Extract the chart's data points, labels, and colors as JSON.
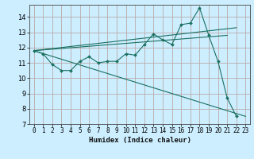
{
  "title": "",
  "xlabel": "Humidex (Indice chaleur)",
  "bg_color": "#cceeff",
  "grid_color": "#bbaaaa",
  "line_color": "#1a7060",
  "xlim": [
    -0.5,
    23.5
  ],
  "ylim": [
    7,
    14.8
  ],
  "xticks": [
    0,
    1,
    2,
    3,
    4,
    5,
    6,
    7,
    8,
    9,
    10,
    11,
    12,
    13,
    14,
    15,
    16,
    17,
    18,
    19,
    20,
    21,
    22,
    23
  ],
  "yticks": [
    7,
    8,
    9,
    10,
    11,
    12,
    13,
    14
  ],
  "series1_x": [
    0,
    1,
    2,
    3,
    4,
    5,
    6,
    7,
    8,
    9,
    10,
    11,
    12,
    13,
    14,
    15,
    16,
    17,
    18,
    19,
    20,
    21,
    22
  ],
  "series1_y": [
    11.8,
    11.6,
    10.9,
    10.5,
    10.5,
    11.1,
    11.4,
    11.0,
    11.1,
    11.1,
    11.6,
    11.5,
    12.2,
    12.9,
    12.5,
    12.2,
    13.5,
    13.6,
    14.6,
    12.8,
    11.1,
    8.7,
    7.5
  ],
  "series2_x": [
    0,
    23
  ],
  "series2_y": [
    11.8,
    7.5
  ],
  "series3_x": [
    0,
    21
  ],
  "series3_y": [
    11.8,
    12.8
  ],
  "series4_x": [
    0,
    22
  ],
  "series4_y": [
    11.8,
    13.3
  ],
  "tick_fontsize": 5.5,
  "xlabel_fontsize": 6.5
}
